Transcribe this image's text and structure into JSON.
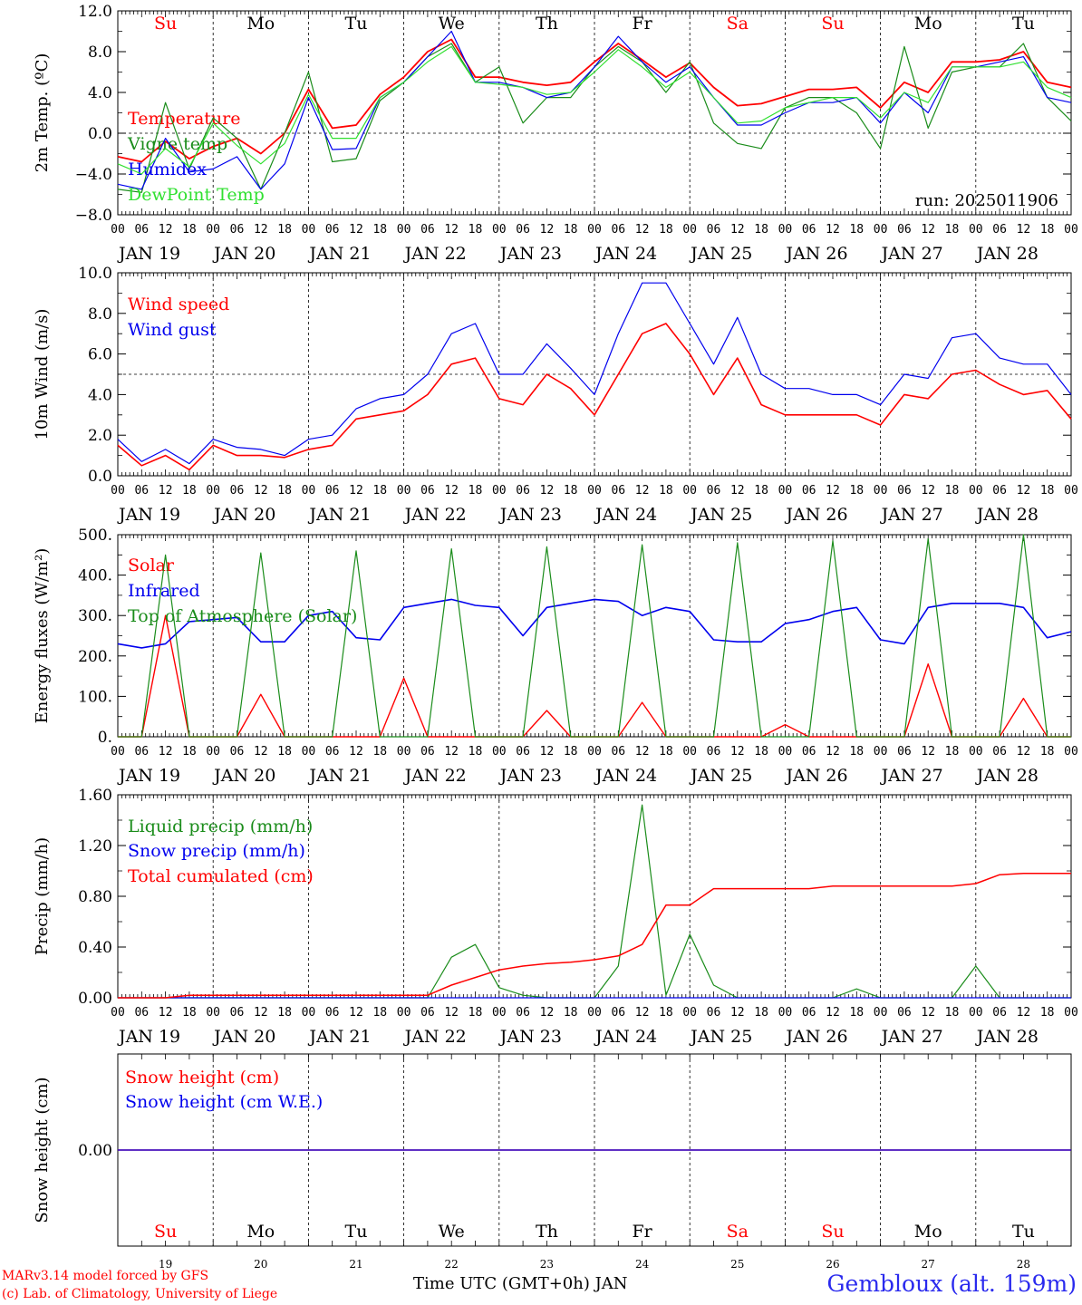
{
  "chart_data": {
    "type": "line",
    "run_label": "run: 2025011906",
    "hour_ticks": [
      "00",
      "06",
      "12",
      "18"
    ],
    "end_tick": "00",
    "days": [
      {
        "date": "JAN 19",
        "day_num": "19",
        "weekday": "Su",
        "weekend": true
      },
      {
        "date": "JAN 20",
        "day_num": "20",
        "weekday": "Mo",
        "weekend": false
      },
      {
        "date": "JAN 21",
        "day_num": "21",
        "weekday": "Tu",
        "weekend": false
      },
      {
        "date": "JAN 22",
        "day_num": "22",
        "weekday": "We",
        "weekend": false
      },
      {
        "date": "JAN 23",
        "day_num": "23",
        "weekday": "Th",
        "weekend": false
      },
      {
        "date": "JAN 24",
        "day_num": "24",
        "weekday": "Fr",
        "weekend": false
      },
      {
        "date": "JAN 25",
        "day_num": "25",
        "weekday": "Sa",
        "weekend": true
      },
      {
        "date": "JAN 26",
        "day_num": "26",
        "weekday": "Su",
        "weekend": true
      },
      {
        "date": "JAN 27",
        "day_num": "27",
        "weekday": "Mo",
        "weekend": false
      },
      {
        "date": "JAN 28",
        "day_num": "28",
        "weekday": "Tu",
        "weekend": false
      }
    ],
    "x_hours": [
      0,
      6,
      12,
      18,
      24,
      30,
      36,
      42,
      48,
      54,
      60,
      66,
      72,
      78,
      84,
      90,
      96,
      102,
      108,
      114,
      120,
      126,
      132,
      138,
      144,
      150,
      156,
      162,
      168,
      174,
      180,
      186,
      192,
      198,
      204,
      210,
      216,
      222,
      228,
      234,
      240
    ],
    "panels": [
      {
        "id": "temperature",
        "ylabel": "2m Temp. (ºC)",
        "ylim": [
          -8,
          12
        ],
        "yticks": [
          "−8.0",
          "−4.0",
          "0.0",
          "4.0",
          "8.0",
          "12.0"
        ],
        "ytick_values": [
          -8,
          -4,
          0,
          4,
          8,
          12
        ],
        "ref_line": 0,
        "series": [
          {
            "name": "Temperature",
            "color": "#ff0000",
            "width": 1.8,
            "values": [
              -2.3,
              -2.8,
              -0.8,
              -2.5,
              -1.3,
              -0.5,
              -2.0,
              0.0,
              4.3,
              0.5,
              0.8,
              3.8,
              5.5,
              8.0,
              9.2,
              5.5,
              5.5,
              5.0,
              4.7,
              5.0,
              7.0,
              8.8,
              7.2,
              5.5,
              6.9,
              4.5,
              2.7,
              2.9,
              3.6,
              4.3,
              4.3,
              4.5,
              2.5,
              5.0,
              4.0,
              7.0,
              7.0,
              7.2,
              8.0,
              5.0,
              4.5
            ]
          },
          {
            "name": "Vigne temp",
            "color": "#1a8c1a",
            "width": 1.2,
            "values": [
              -5.5,
              -5.8,
              3.0,
              -3.5,
              1.5,
              -0.5,
              -5.5,
              0.0,
              6.0,
              -2.8,
              -2.5,
              3.2,
              5.0,
              7.5,
              8.8,
              5.0,
              6.5,
              1.0,
              3.5,
              3.5,
              6.5,
              8.5,
              7.0,
              4.0,
              7.0,
              1.0,
              -1.0,
              -1.5,
              2.5,
              3.5,
              3.5,
              2.0,
              -1.5,
              8.5,
              0.5,
              6.0,
              6.5,
              6.5,
              8.8,
              3.5,
              1.2
            ]
          },
          {
            "name": "Humidex",
            "color": "#0000ee",
            "width": 1.2,
            "values": [
              -5.0,
              -5.5,
              -0.5,
              -3.8,
              -3.5,
              -2.3,
              -5.5,
              -3.0,
              3.5,
              -1.6,
              -1.5,
              3.5,
              5.0,
              7.5,
              10.0,
              5.0,
              5.0,
              4.5,
              3.5,
              4.0,
              6.5,
              9.5,
              7.0,
              5.0,
              6.5,
              3.5,
              0.8,
              0.8,
              2.0,
              3.0,
              3.0,
              3.5,
              1.0,
              4.0,
              2.0,
              6.5,
              6.5,
              7.0,
              7.5,
              3.5,
              3.0
            ]
          },
          {
            "name": "DewPoint Temp",
            "color": "#30e030",
            "width": 1.2,
            "values": [
              -3.0,
              -4.0,
              -1.5,
              -3.3,
              1.0,
              -1.2,
              -3.0,
              -1.0,
              3.8,
              -0.5,
              -0.5,
              3.5,
              5.0,
              7.0,
              8.5,
              5.0,
              4.8,
              4.5,
              3.8,
              4.0,
              6.0,
              8.2,
              6.5,
              4.5,
              6.0,
              3.5,
              1.0,
              1.2,
              2.5,
              3.0,
              3.5,
              3.5,
              1.5,
              4.0,
              3.0,
              6.5,
              6.5,
              6.5,
              7.0,
              4.5,
              3.5
            ]
          }
        ]
      },
      {
        "id": "wind",
        "ylabel": "10m Wind (m/s)",
        "ylim": [
          0,
          10
        ],
        "yticks": [
          "0.0",
          "2.0",
          "4.0",
          "6.0",
          "8.0",
          "10.0"
        ],
        "ytick_values": [
          0,
          2,
          4,
          6,
          8,
          10
        ],
        "ref_line": 5,
        "series": [
          {
            "name": "Wind speed",
            "color": "#ff0000",
            "width": 1.6,
            "values": [
              1.5,
              0.5,
              1.0,
              0.3,
              1.5,
              1.0,
              1.0,
              0.9,
              1.3,
              1.5,
              2.8,
              3.0,
              3.2,
              4.0,
              5.5,
              5.8,
              3.8,
              3.5,
              5.0,
              4.3,
              3.0,
              5.0,
              7.0,
              7.5,
              6.0,
              4.0,
              5.8,
              3.5,
              3.0,
              3.0,
              3.0,
              3.0,
              2.5,
              4.0,
              3.8,
              5.0,
              5.2,
              4.5,
              4.0,
              4.2,
              2.8
            ]
          },
          {
            "name": "Wind gust",
            "color": "#0000ee",
            "width": 1.2,
            "values": [
              1.8,
              0.7,
              1.3,
              0.6,
              1.8,
              1.4,
              1.3,
              1.0,
              1.8,
              2.0,
              3.3,
              3.8,
              4.0,
              5.0,
              7.0,
              7.5,
              5.0,
              5.0,
              6.5,
              5.3,
              4.0,
              7.0,
              9.5,
              9.5,
              7.5,
              5.5,
              7.8,
              5.0,
              4.3,
              4.3,
              4.0,
              4.0,
              3.5,
              5.0,
              4.8,
              6.8,
              7.0,
              5.8,
              5.5,
              5.5,
              4.0
            ]
          }
        ]
      },
      {
        "id": "energy",
        "ylabel": "Energy fluxes (W/m²)",
        "ylim": [
          0,
          500
        ],
        "yticks": [
          "0.",
          "100.",
          "200.",
          "300.",
          "400.",
          "500."
        ],
        "ytick_values": [
          0,
          100,
          200,
          300,
          400,
          500
        ],
        "ref_line": null,
        "series": [
          {
            "name": "Solar",
            "color": "#ff0000",
            "width": 1.4,
            "values": [
              0,
              0,
              300,
              0,
              0,
              0,
              105,
              0,
              0,
              0,
              0,
              0,
              145,
              0,
              0,
              0,
              0,
              0,
              65,
              0,
              0,
              0,
              85,
              0,
              0,
              0,
              0,
              0,
              30,
              0,
              0,
              0,
              0,
              0,
              180,
              0,
              0,
              0,
              95,
              0,
              0
            ]
          },
          {
            "name": "Infrared",
            "color": "#0000ee",
            "width": 1.6,
            "values": [
              230,
              220,
              230,
              285,
              290,
              295,
              235,
              235,
              300,
              310,
              245,
              240,
              320,
              330,
              340,
              325,
              320,
              250,
              320,
              330,
              340,
              335,
              300,
              320,
              310,
              240,
              235,
              235,
              280,
              290,
              310,
              320,
              240,
              230,
              320,
              330,
              330,
              330,
              320,
              245,
              260
            ]
          },
          {
            "name": "Top of Atmosphere (Solar)",
            "color": "#1a8c1a",
            "width": 1.2,
            "values": [
              0,
              0,
              450,
              0,
              0,
              0,
              455,
              0,
              0,
              0,
              460,
              0,
              0,
              0,
              465,
              0,
              0,
              0,
              470,
              0,
              0,
              0,
              475,
              0,
              0,
              0,
              480,
              0,
              0,
              0,
              485,
              0,
              0,
              0,
              490,
              0,
              0,
              0,
              500,
              0,
              0
            ]
          }
        ]
      },
      {
        "id": "precip",
        "ylabel": "Precip (mm/h)",
        "ylim": [
          0,
          1.6
        ],
        "yticks": [
          "0.00",
          "0.40",
          "0.80",
          "1.20",
          "1.60"
        ],
        "ytick_values": [
          0,
          0.4,
          0.8,
          1.2,
          1.6
        ],
        "ref_line": null,
        "series": [
          {
            "name": "Liquid precip (mm/h)",
            "color": "#1a8c1a",
            "width": 1.2,
            "values": [
              0,
              0,
              0,
              0,
              0,
              0,
              0,
              0,
              0,
              0,
              0,
              0,
              0,
              0,
              0.32,
              0.42,
              0.08,
              0.02,
              0,
              0,
              0,
              0.25,
              1.52,
              0.02,
              0.5,
              0.1,
              0,
              0,
              0,
              0,
              0,
              0.07,
              0,
              0,
              0,
              0,
              0.25,
              0,
              0,
              0,
              0
            ]
          },
          {
            "name": "Snow precip (mm/h)",
            "color": "#0000ee",
            "width": 1.2,
            "values": [
              0,
              0,
              0,
              0,
              0,
              0,
              0,
              0,
              0,
              0,
              0,
              0,
              0,
              0,
              0,
              0,
              0,
              0,
              0,
              0,
              0,
              0,
              0,
              0,
              0,
              0,
              0,
              0,
              0,
              0,
              0,
              0,
              0,
              0,
              0,
              0,
              0,
              0,
              0,
              0,
              0
            ]
          },
          {
            "name": "Total cumulated (cm)",
            "color": "#ff0000",
            "width": 1.5,
            "values": [
              0,
              0,
              0,
              0.02,
              0.02,
              0.02,
              0.02,
              0.02,
              0.02,
              0.02,
              0.02,
              0.02,
              0.02,
              0.02,
              0.1,
              0.16,
              0.22,
              0.25,
              0.27,
              0.28,
              0.3,
              0.33,
              0.42,
              0.73,
              0.73,
              0.86,
              0.86,
              0.86,
              0.86,
              0.86,
              0.88,
              0.88,
              0.88,
              0.88,
              0.88,
              0.88,
              0.9,
              0.97,
              0.98,
              0.98,
              0.98
            ]
          }
        ]
      },
      {
        "id": "snow",
        "ylabel": "Snow height (cm)",
        "ylim": [
          -1,
          1
        ],
        "yticks": [
          "0.00"
        ],
        "ytick_values": [
          0
        ],
        "ref_line": null,
        "series": [
          {
            "name": "Snow height (cm)",
            "color": "#ff0000",
            "width": 1.4,
            "values": [
              0,
              0,
              0,
              0,
              0,
              0,
              0,
              0,
              0,
              0,
              0,
              0,
              0,
              0,
              0,
              0,
              0,
              0,
              0,
              0,
              0,
              0,
              0,
              0,
              0,
              0,
              0,
              0,
              0,
              0,
              0,
              0,
              0,
              0,
              0,
              0,
              0,
              0,
              0,
              0,
              0
            ]
          },
          {
            "name": "Snow height (cm W.E.)",
            "color": "#0000ee",
            "width": 1.2,
            "values": [
              0,
              0,
              0,
              0,
              0,
              0,
              0,
              0,
              0,
              0,
              0,
              0,
              0,
              0,
              0,
              0,
              0,
              0,
              0,
              0,
              0,
              0,
              0,
              0,
              0,
              0,
              0,
              0,
              0,
              0,
              0,
              0,
              0,
              0,
              0,
              0,
              0,
              0,
              0,
              0,
              0
            ]
          }
        ]
      }
    ],
    "xlabel_bottom": "Time UTC (GMT+0h) JAN"
  },
  "footer": {
    "credit_model": "MARv3.14 model forced by GFS",
    "credit_lab": "(c) Lab. of Climatology, University of Liege",
    "station": "Gembloux (alt. 159m)"
  },
  "colors": {
    "weekend": "#ff0000",
    "weekday": "#000000",
    "station": "#2a2aee"
  }
}
